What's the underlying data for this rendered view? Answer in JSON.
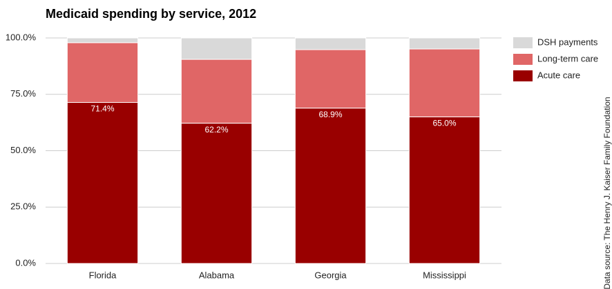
{
  "chart_data": {
    "type": "stacked_bar",
    "title": "Medicaid spending by service, 2012",
    "categories": [
      "Florida",
      "Alabama",
      "Georgia",
      "Mississippi"
    ],
    "series": [
      {
        "name": "Acute care",
        "color": "#990000",
        "values": [
          71.4,
          62.2,
          68.9,
          65.0
        ],
        "value_labels": [
          "71.4%",
          "62.2%",
          "68.9%",
          "65.0%"
        ]
      },
      {
        "name": "Long-term care",
        "color": "#e06666",
        "values": [
          26.5,
          28.3,
          25.9,
          30.1
        ]
      },
      {
        "name": "DSH payments",
        "color": "#d9d9d9",
        "values": [
          2.1,
          9.5,
          5.2,
          4.9
        ]
      }
    ],
    "ylim": [
      0,
      100
    ],
    "yticks": [
      {
        "value": 0,
        "label": "0.0%"
      },
      {
        "value": 25,
        "label": "25.0%"
      },
      {
        "value": 50,
        "label": "50.0%"
      },
      {
        "value": 75,
        "label": "75.0%"
      },
      {
        "value": 100,
        "label": "100.0%"
      }
    ],
    "grid": true,
    "source": "Data source: The Henry J. Kaiser Family Foundation"
  }
}
